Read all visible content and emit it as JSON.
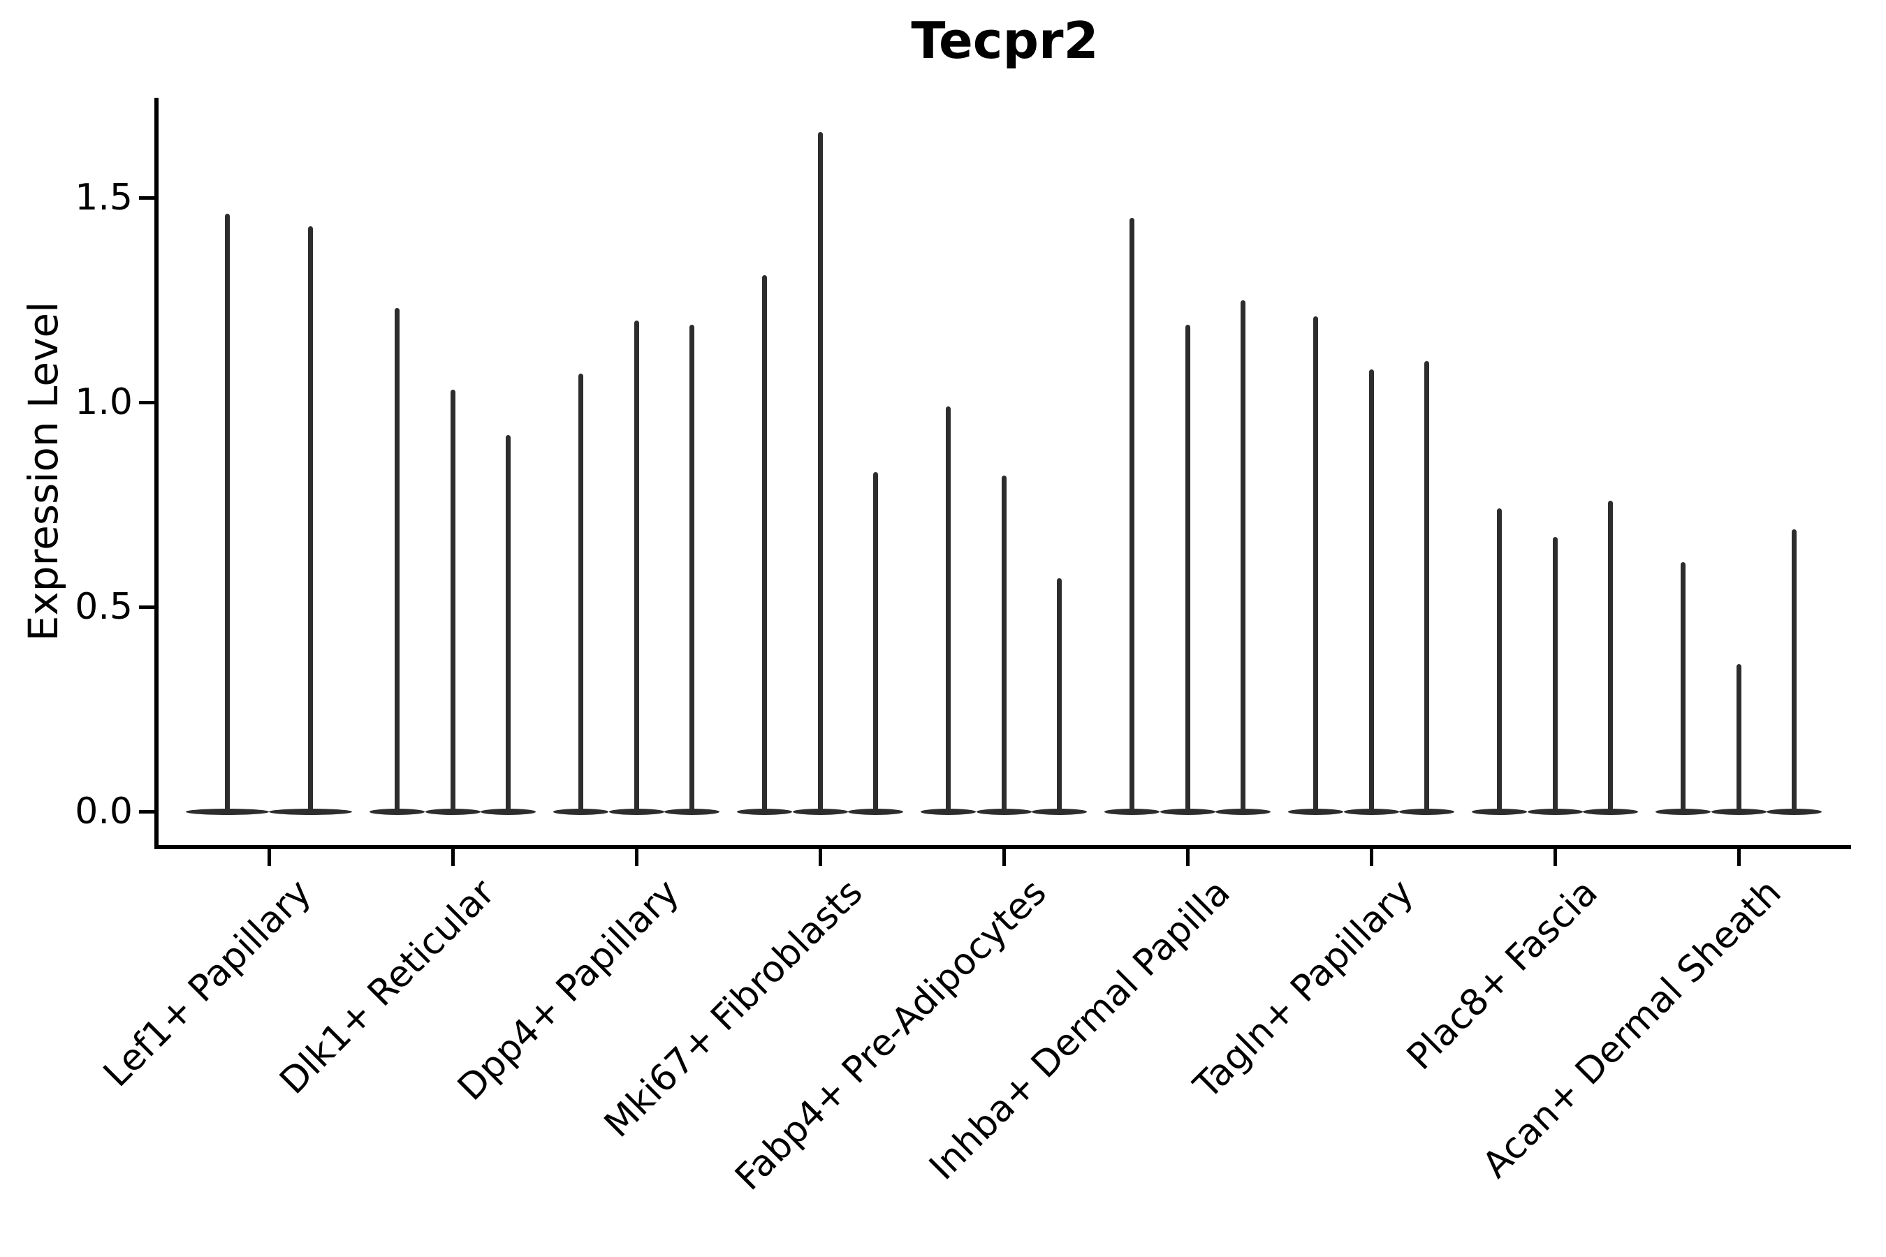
{
  "title": "Tecpr2",
  "y_axis": {
    "label": "Expression Level",
    "ticks": [
      "0.0",
      "0.5",
      "1.0",
      "1.5"
    ],
    "tick_values": [
      0.0,
      0.5,
      1.0,
      1.5
    ]
  },
  "colors": {
    "violin": "#2d2d2d",
    "axis": "#000000",
    "background": "#ffffff",
    "text": "#000000"
  },
  "chart_data": {
    "type": "violin",
    "title": "Tecpr2",
    "xlabel": "",
    "ylabel": "Expression Level",
    "ylim": [
      -0.08,
      1.74
    ],
    "grid": false,
    "legend_position": "none",
    "description": "Stacked-violin style gene expression plot; each category shows thin spike violins rising from a flat base at 0 to the maximum expression value.",
    "categories": [
      "Lef1+ Papillary",
      "Dlk1+ Reticular",
      "Dpp4+ Papillary",
      "Mki67+ Fibroblasts",
      "Fabp4+ Pre-Adipocytes",
      "Inhba+ Dermal Papilla",
      "Tagln+ Papillary",
      "Plac8+ Fascia",
      "Acan+ Dermal Sheath"
    ],
    "groups": [
      {
        "category": "Lef1+ Papillary",
        "violin_maxima": [
          1.46,
          1.43
        ]
      },
      {
        "category": "Dlk1+ Reticular",
        "violin_maxima": [
          1.23,
          1.03,
          0.92
        ]
      },
      {
        "category": "Dpp4+ Papillary",
        "violin_maxima": [
          1.07,
          1.2,
          1.19
        ]
      },
      {
        "category": "Mki67+ Fibroblasts",
        "violin_maxima": [
          1.31,
          1.66,
          0.83
        ]
      },
      {
        "category": "Fabp4+ Pre-Adipocytes",
        "violin_maxima": [
          0.99,
          0.82,
          0.57
        ]
      },
      {
        "category": "Inhba+ Dermal Papilla",
        "violin_maxima": [
          1.45,
          1.19,
          1.25
        ]
      },
      {
        "category": "Tagln+ Papillary",
        "violin_maxima": [
          1.21,
          1.08,
          1.1
        ]
      },
      {
        "category": "Plac8+ Fascia",
        "violin_maxima": [
          0.74,
          0.67,
          0.76
        ]
      },
      {
        "category": "Acan+ Dermal Sheath",
        "violin_maxima": [
          0.61,
          0.36,
          0.69
        ]
      }
    ],
    "violin_baseline_value": 0.0
  }
}
